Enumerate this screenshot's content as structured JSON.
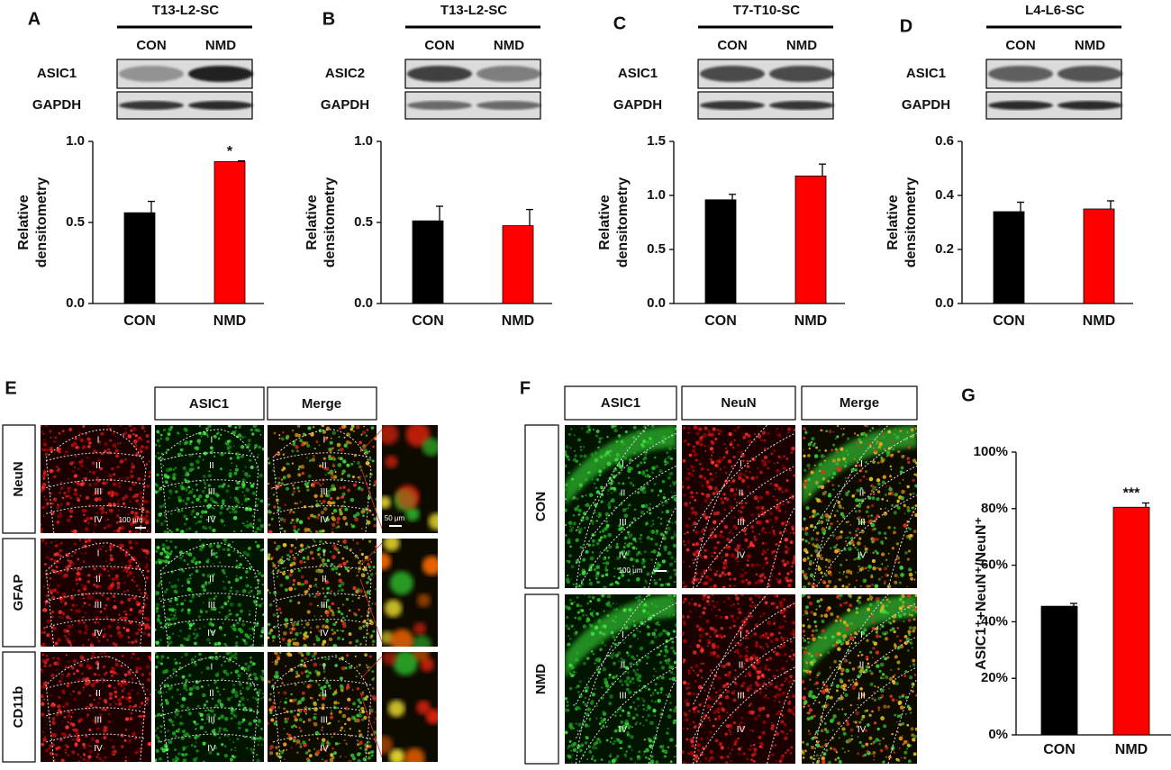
{
  "panel_labels": [
    "A",
    "B",
    "C",
    "D",
    "E",
    "F",
    "G"
  ],
  "blots": [
    {
      "region": "T13-L2-SC",
      "lanes": [
        "CON",
        "NMD"
      ],
      "rows": [
        "ASIC1",
        "GAPDH"
      ]
    },
    {
      "region": "T13-L2-SC",
      "lanes": [
        "CON",
        "NMD"
      ],
      "rows": [
        "ASIC2",
        "GAPDH"
      ]
    },
    {
      "region": "T7-T10-SC",
      "lanes": [
        "CON",
        "NMD"
      ],
      "rows": [
        "ASIC1",
        "GAPDH"
      ]
    },
    {
      "region": "L4-L6-SC",
      "lanes": [
        "CON",
        "NMD"
      ],
      "rows": [
        "ASIC1",
        "GAPDH"
      ]
    }
  ],
  "chart_data": [
    {
      "type": "bar",
      "y_label": [
        "Relative",
        "densitometry"
      ],
      "categories": [
        "CON",
        "NMD"
      ],
      "values": [
        0.56,
        0.875
      ],
      "errors": [
        0.07,
        0.005
      ],
      "colors": [
        "#000000",
        "#ff0000"
      ],
      "significance": [
        null,
        "*"
      ],
      "ylim": [
        0,
        1
      ],
      "yticks": [
        {
          "value": 0,
          "label": "0.0"
        },
        0.5,
        {
          "value": 1,
          "label": "1.0"
        }
      ]
    },
    {
      "type": "bar",
      "y_label": [
        "Relative",
        "densitometry"
      ],
      "categories": [
        "CON",
        "NMD"
      ],
      "values": [
        0.51,
        0.48
      ],
      "errors": [
        0.09,
        0.1
      ],
      "colors": [
        "#000000",
        "#ff0000"
      ],
      "significance": [
        null,
        null
      ],
      "ylim": [
        0,
        1
      ],
      "yticks": [
        {
          "value": 0,
          "label": "0.0"
        },
        0.5,
        {
          "value": 1,
          "label": "1.0"
        }
      ]
    },
    {
      "type": "bar",
      "y_label": [
        "Relative",
        "densitometry"
      ],
      "categories": [
        "CON",
        "NMD"
      ],
      "values": [
        0.96,
        1.18
      ],
      "errors": [
        0.05,
        0.11
      ],
      "colors": [
        "#000000",
        "#ff0000"
      ],
      "significance": [
        null,
        null
      ],
      "ylim": [
        0,
        1.5
      ],
      "yticks": [
        {
          "value": 0,
          "label": "0.0"
        },
        0.5,
        {
          "value": 1,
          "label": "1.0"
        },
        1.5
      ]
    },
    {
      "type": "bar",
      "y_label": [
        "Relative",
        "densitometry"
      ],
      "categories": [
        "CON",
        "NMD"
      ],
      "values": [
        0.34,
        0.35
      ],
      "errors": [
        0.035,
        0.03
      ],
      "colors": [
        "#000000",
        "#ff0000"
      ],
      "significance": [
        null,
        null
      ],
      "ylim": [
        0,
        0.6
      ],
      "yticks": [
        {
          "value": 0,
          "label": "0.0"
        },
        0.2,
        0.4,
        0.6
      ]
    },
    {
      "type": "bar",
      "y_label": [
        "ASIC1⁺+NeuN⁺/NeuN⁺"
      ],
      "categories": [
        "CON",
        "NMD"
      ],
      "values": [
        45.5,
        80.5
      ],
      "errors": [
        1,
        1.5
      ],
      "colors": [
        "#000000",
        "#ff0000"
      ],
      "significance": [
        null,
        "***"
      ],
      "ylim": [
        0,
        100
      ],
      "yticks": [
        {
          "value": 0,
          "label": "0%"
        },
        {
          "value": 20,
          "label": "20%"
        },
        {
          "value": 40,
          "label": "40%"
        },
        {
          "value": 60,
          "label": "60%"
        },
        {
          "value": 80,
          "label": "80%"
        },
        {
          "value": 100,
          "label": "100%"
        }
      ]
    }
  ],
  "micrographs": {
    "E": {
      "columns": [
        "ASIC1",
        "Merge"
      ],
      "rows": [
        "NeuN",
        "GFAP",
        "CD11b"
      ],
      "scale_bars": [
        "100 μm",
        "50 μm"
      ]
    },
    "F": {
      "columns": [
        "ASIC1",
        "NeuN",
        "Merge"
      ],
      "rows": [
        "CON",
        "NMD"
      ],
      "scale_bar": "100 μm"
    },
    "laminae": [
      "I",
      "II",
      "III",
      "IV"
    ]
  }
}
